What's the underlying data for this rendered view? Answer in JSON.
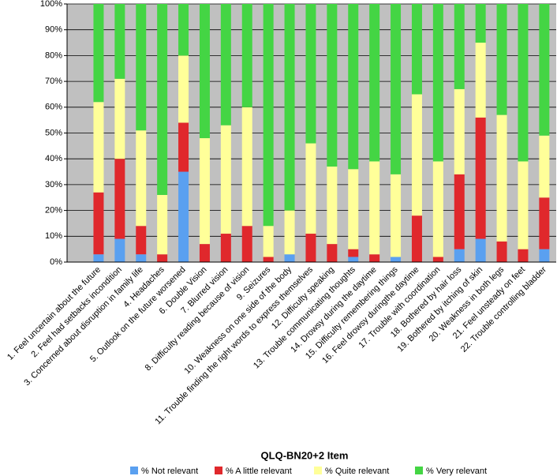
{
  "chart_data": {
    "type": "stacked_bar_100",
    "x_label": "QLQ-BN20+2 Item",
    "categories": [
      "1. Feel uncertain about the future",
      "2. Feel had setbacks incondition",
      "3. Concerned about disruption in family life",
      "4. Headaches",
      "5. Outlook on the future worsened",
      "6. Double Vision",
      "7. Blurred vision",
      "8. Difficulty reading because of vision",
      "9. Seizures",
      "10. Weakness on one side of the body",
      "11. Trouble finding the right words to express themselves",
      "12. Difficulty speaking",
      "13. Trouble communicating thoughts",
      "14. Drowsy during the daytime",
      "15. Difficulty remembering things",
      "16. Feel drowsy duringthe daytime",
      "17. Trouble with coordination",
      "18. Bothered by hair loss",
      "19. Bothered by itching of skin",
      "20. Weakness in both legs",
      "21. Feel unsteady on feet",
      "22. Trouble controlling bladder"
    ],
    "series": [
      {
        "name": "% Not relevant",
        "color": "#5aa0f0",
        "values": [
          3,
          9,
          3,
          0,
          35,
          0,
          0,
          0,
          0,
          3,
          0,
          0,
          2,
          0,
          2,
          0,
          0,
          5,
          9,
          0,
          0,
          5
        ]
      },
      {
        "name": "% A little relevant",
        "color": "#e0282c",
        "values": [
          24,
          31,
          11,
          3,
          19,
          7,
          11,
          14,
          2,
          0,
          11,
          7,
          3,
          3,
          0,
          18,
          2,
          29,
          47,
          8,
          5,
          20
        ]
      },
      {
        "name": "% Quite relevant",
        "color": "#ffff99",
        "values": [
          35,
          31,
          37,
          23,
          26,
          41,
          42,
          46,
          12,
          17,
          35,
          30,
          31,
          36,
          32,
          47,
          37,
          33,
          29,
          49,
          34,
          24
        ]
      },
      {
        "name": "% Very relevant",
        "color": "#44d544",
        "values": [
          38,
          29,
          49,
          74,
          20,
          52,
          47,
          40,
          86,
          80,
          54,
          63,
          64,
          61,
          66,
          35,
          61,
          33,
          15,
          43,
          61,
          51
        ]
      }
    ],
    "ylim": [
      0,
      100
    ],
    "yticks": [
      {
        "value": 0,
        "label": "0%"
      },
      {
        "value": 10,
        "label": "10%"
      },
      {
        "value": 20,
        "label": "20%"
      },
      {
        "value": 30,
        "label": "30%"
      },
      {
        "value": 40,
        "label": "40%"
      },
      {
        "value": 50,
        "label": "50%"
      },
      {
        "value": 60,
        "label": "60%"
      },
      {
        "value": 70,
        "label": "70%"
      },
      {
        "value": 80,
        "label": "80%"
      },
      {
        "value": 90,
        "label": "90%"
      },
      {
        "value": 100,
        "label": "100%"
      }
    ],
    "grid": true
  }
}
